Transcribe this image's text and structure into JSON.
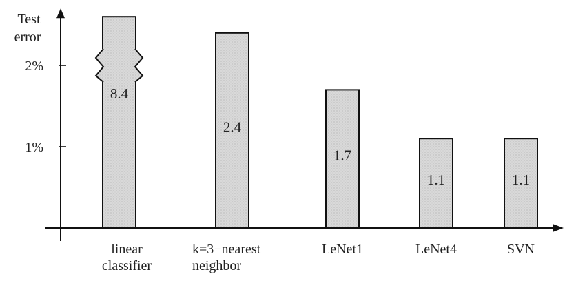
{
  "chart_data": {
    "type": "bar",
    "title": "",
    "ylabel": [
      "Test",
      "error"
    ],
    "xlabel": "",
    "ylim": [
      0,
      2.6
    ],
    "y_unit": "%",
    "yticks": [
      {
        "value": 1,
        "label": "1%"
      },
      {
        "value": 2,
        "label": "2%"
      }
    ],
    "categories": [
      [
        "linear",
        "classifier"
      ],
      [
        "k=3−nearest",
        "neighbor"
      ],
      [
        "LeNet1"
      ],
      [
        "LeNet4"
      ],
      [
        "SVN"
      ]
    ],
    "values": [
      8.4,
      2.4,
      1.7,
      1.1,
      1.1
    ],
    "value_labels": [
      "8.4",
      "2.4",
      "1.7",
      "1.1",
      "1.1"
    ],
    "axis_break": {
      "category_index": 0,
      "at": 2.0
    },
    "grid": false,
    "legend": "none",
    "bar_fill": "#dcdcdc",
    "bar_stroke": "#111111"
  }
}
